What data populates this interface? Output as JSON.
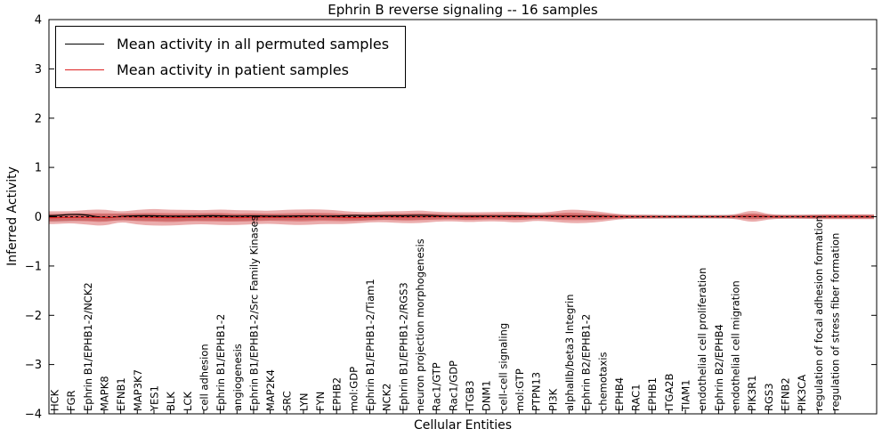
{
  "chart_data": {
    "type": "line",
    "title": "Ephrin B reverse signaling -- 16 samples",
    "xlabel": "Cellular Entities",
    "ylabel": "Inferred Activity",
    "ylim": [
      -4,
      4
    ],
    "yticks": [
      -4,
      -3,
      -2,
      -1,
      0,
      1,
      2,
      3,
      4
    ],
    "legend_position": "upper left",
    "grid": false,
    "zero_line": {
      "style": "dashed",
      "color": "#000000"
    },
    "categories": [
      "HCK",
      "FGR",
      "Ephrin B1/EPHB1-2/NCK2",
      "MAPK8",
      "EFNB1",
      "MAP3K7",
      "YES1",
      "BLK",
      "LCK",
      "cell adhesion",
      "Ephrin B1/EPHB1-2",
      "angiogenesis",
      "Ephrin B1/EPHB1-2/Src Family Kinases",
      "MAP2K4",
      "SRC",
      "LYN",
      "FYN",
      "EPHB2",
      "mol:GDP",
      "Ephrin B1/EPHB1-2/Tiam1",
      "NCK2",
      "Ephrin B1/EPHB1-2/RGS3",
      "neuron projection morphogenesis",
      "Rac1/GTP",
      "Rac1/GDP",
      "ITGB3",
      "DNM1",
      "cell-cell signaling",
      "mol:GTP",
      "PTPN13",
      "PI3K",
      "alphaIIb/beta3 Integrin",
      "Ephrin B2/EPHB1-2",
      "chemotaxis",
      "EPHB4",
      "RAC1",
      "EPHB1",
      "ITGA2B",
      "TIAM1",
      "endothelial cell proliferation",
      "Ephrin B2/EPHB4",
      "endothelial cell migration",
      "PIK3R1",
      "RGS3",
      "EFNB2",
      "PIK3CA",
      "regulation of focal adhesion formation",
      "regulation of stress fiber formation"
    ],
    "series": [
      {
        "name": "Mean activity in all permuted samples",
        "color": "#000000",
        "style": "solid",
        "values": [
          0.02,
          0.05,
          0.04,
          -0.03,
          0.01,
          0.02,
          0.02,
          0.01,
          0.01,
          0.02,
          0.02,
          0.01,
          0.02,
          0.01,
          0.01,
          0.02,
          0.01,
          0.01,
          0.03,
          0.02,
          0.02,
          0.02,
          0.03,
          0.02,
          0.01,
          0.01,
          0.01,
          0.01,
          0.02,
          0.01,
          0.01,
          0.02,
          0.01,
          0.01,
          0.0,
          0.0,
          0.0,
          0.0,
          0.0,
          0.0,
          0.0,
          0.0,
          0.01,
          0.0,
          0.0,
          0.0,
          0.0,
          0.0
        ]
      },
      {
        "name": "Mean activity in patient samples",
        "color": "#dd2222",
        "style": "solid",
        "values": [
          -0.02,
          -0.01,
          -0.01,
          -0.02,
          0.0,
          -0.01,
          -0.01,
          -0.02,
          -0.01,
          -0.01,
          -0.01,
          -0.02,
          -0.01,
          -0.01,
          -0.01,
          -0.01,
          0.0,
          -0.01,
          -0.02,
          -0.01,
          0.0,
          -0.01,
          0.0,
          0.0,
          0.0,
          -0.01,
          0.0,
          0.0,
          -0.01,
          0.0,
          0.0,
          0.01,
          0.0,
          0.0,
          0.0,
          0.0,
          0.0,
          0.0,
          0.0,
          0.0,
          0.0,
          0.0,
          0.01,
          0.0,
          0.0,
          0.0,
          0.0,
          0.0
        ]
      }
    ],
    "bands": [
      {
        "name": "permuted-samples-spread-band",
        "color": "#999999",
        "opacity": 0.45,
        "halfwidth": [
          0.08,
          0.08,
          0.07,
          0.07,
          0.07,
          0.07,
          0.07,
          0.07,
          0.07,
          0.07,
          0.07,
          0.07,
          0.07,
          0.06,
          0.06,
          0.06,
          0.06,
          0.06,
          0.06,
          0.06,
          0.06,
          0.06,
          0.06,
          0.05,
          0.05,
          0.05,
          0.05,
          0.05,
          0.05,
          0.05,
          0.05,
          0.05,
          0.05,
          0.05,
          0.04,
          0.04,
          0.04,
          0.04,
          0.04,
          0.04,
          0.04,
          0.04,
          0.05,
          0.04,
          0.04,
          0.04,
          0.04,
          0.04
        ]
      },
      {
        "name": "patient-samples-spread-band",
        "color": "#cc3333",
        "opacity": 0.4,
        "halfwidth": [
          0.13,
          0.12,
          0.15,
          0.17,
          0.1,
          0.15,
          0.17,
          0.16,
          0.15,
          0.14,
          0.16,
          0.15,
          0.14,
          0.13,
          0.15,
          0.16,
          0.15,
          0.14,
          0.12,
          0.1,
          0.11,
          0.12,
          0.13,
          0.1,
          0.09,
          0.1,
          0.09,
          0.1,
          0.11,
          0.08,
          0.1,
          0.14,
          0.13,
          0.1,
          0.05,
          0.04,
          0.04,
          0.03,
          0.03,
          0.03,
          0.03,
          0.04,
          0.13,
          0.05,
          0.04,
          0.04,
          0.05,
          0.05
        ]
      },
      {
        "name": "patient-samples-core-band",
        "color": "#cc3333",
        "opacity": 0.4,
        "halfwidth": [
          0.07,
          0.07,
          0.08,
          0.09,
          0.06,
          0.08,
          0.09,
          0.09,
          0.08,
          0.08,
          0.09,
          0.08,
          0.08,
          0.07,
          0.08,
          0.09,
          0.08,
          0.08,
          0.07,
          0.06,
          0.06,
          0.07,
          0.07,
          0.06,
          0.05,
          0.06,
          0.05,
          0.06,
          0.06,
          0.04,
          0.06,
          0.08,
          0.07,
          0.06,
          0.03,
          0.02,
          0.02,
          0.02,
          0.02,
          0.02,
          0.02,
          0.02,
          0.07,
          0.03,
          0.02,
          0.02,
          0.03,
          0.03
        ]
      }
    ]
  }
}
